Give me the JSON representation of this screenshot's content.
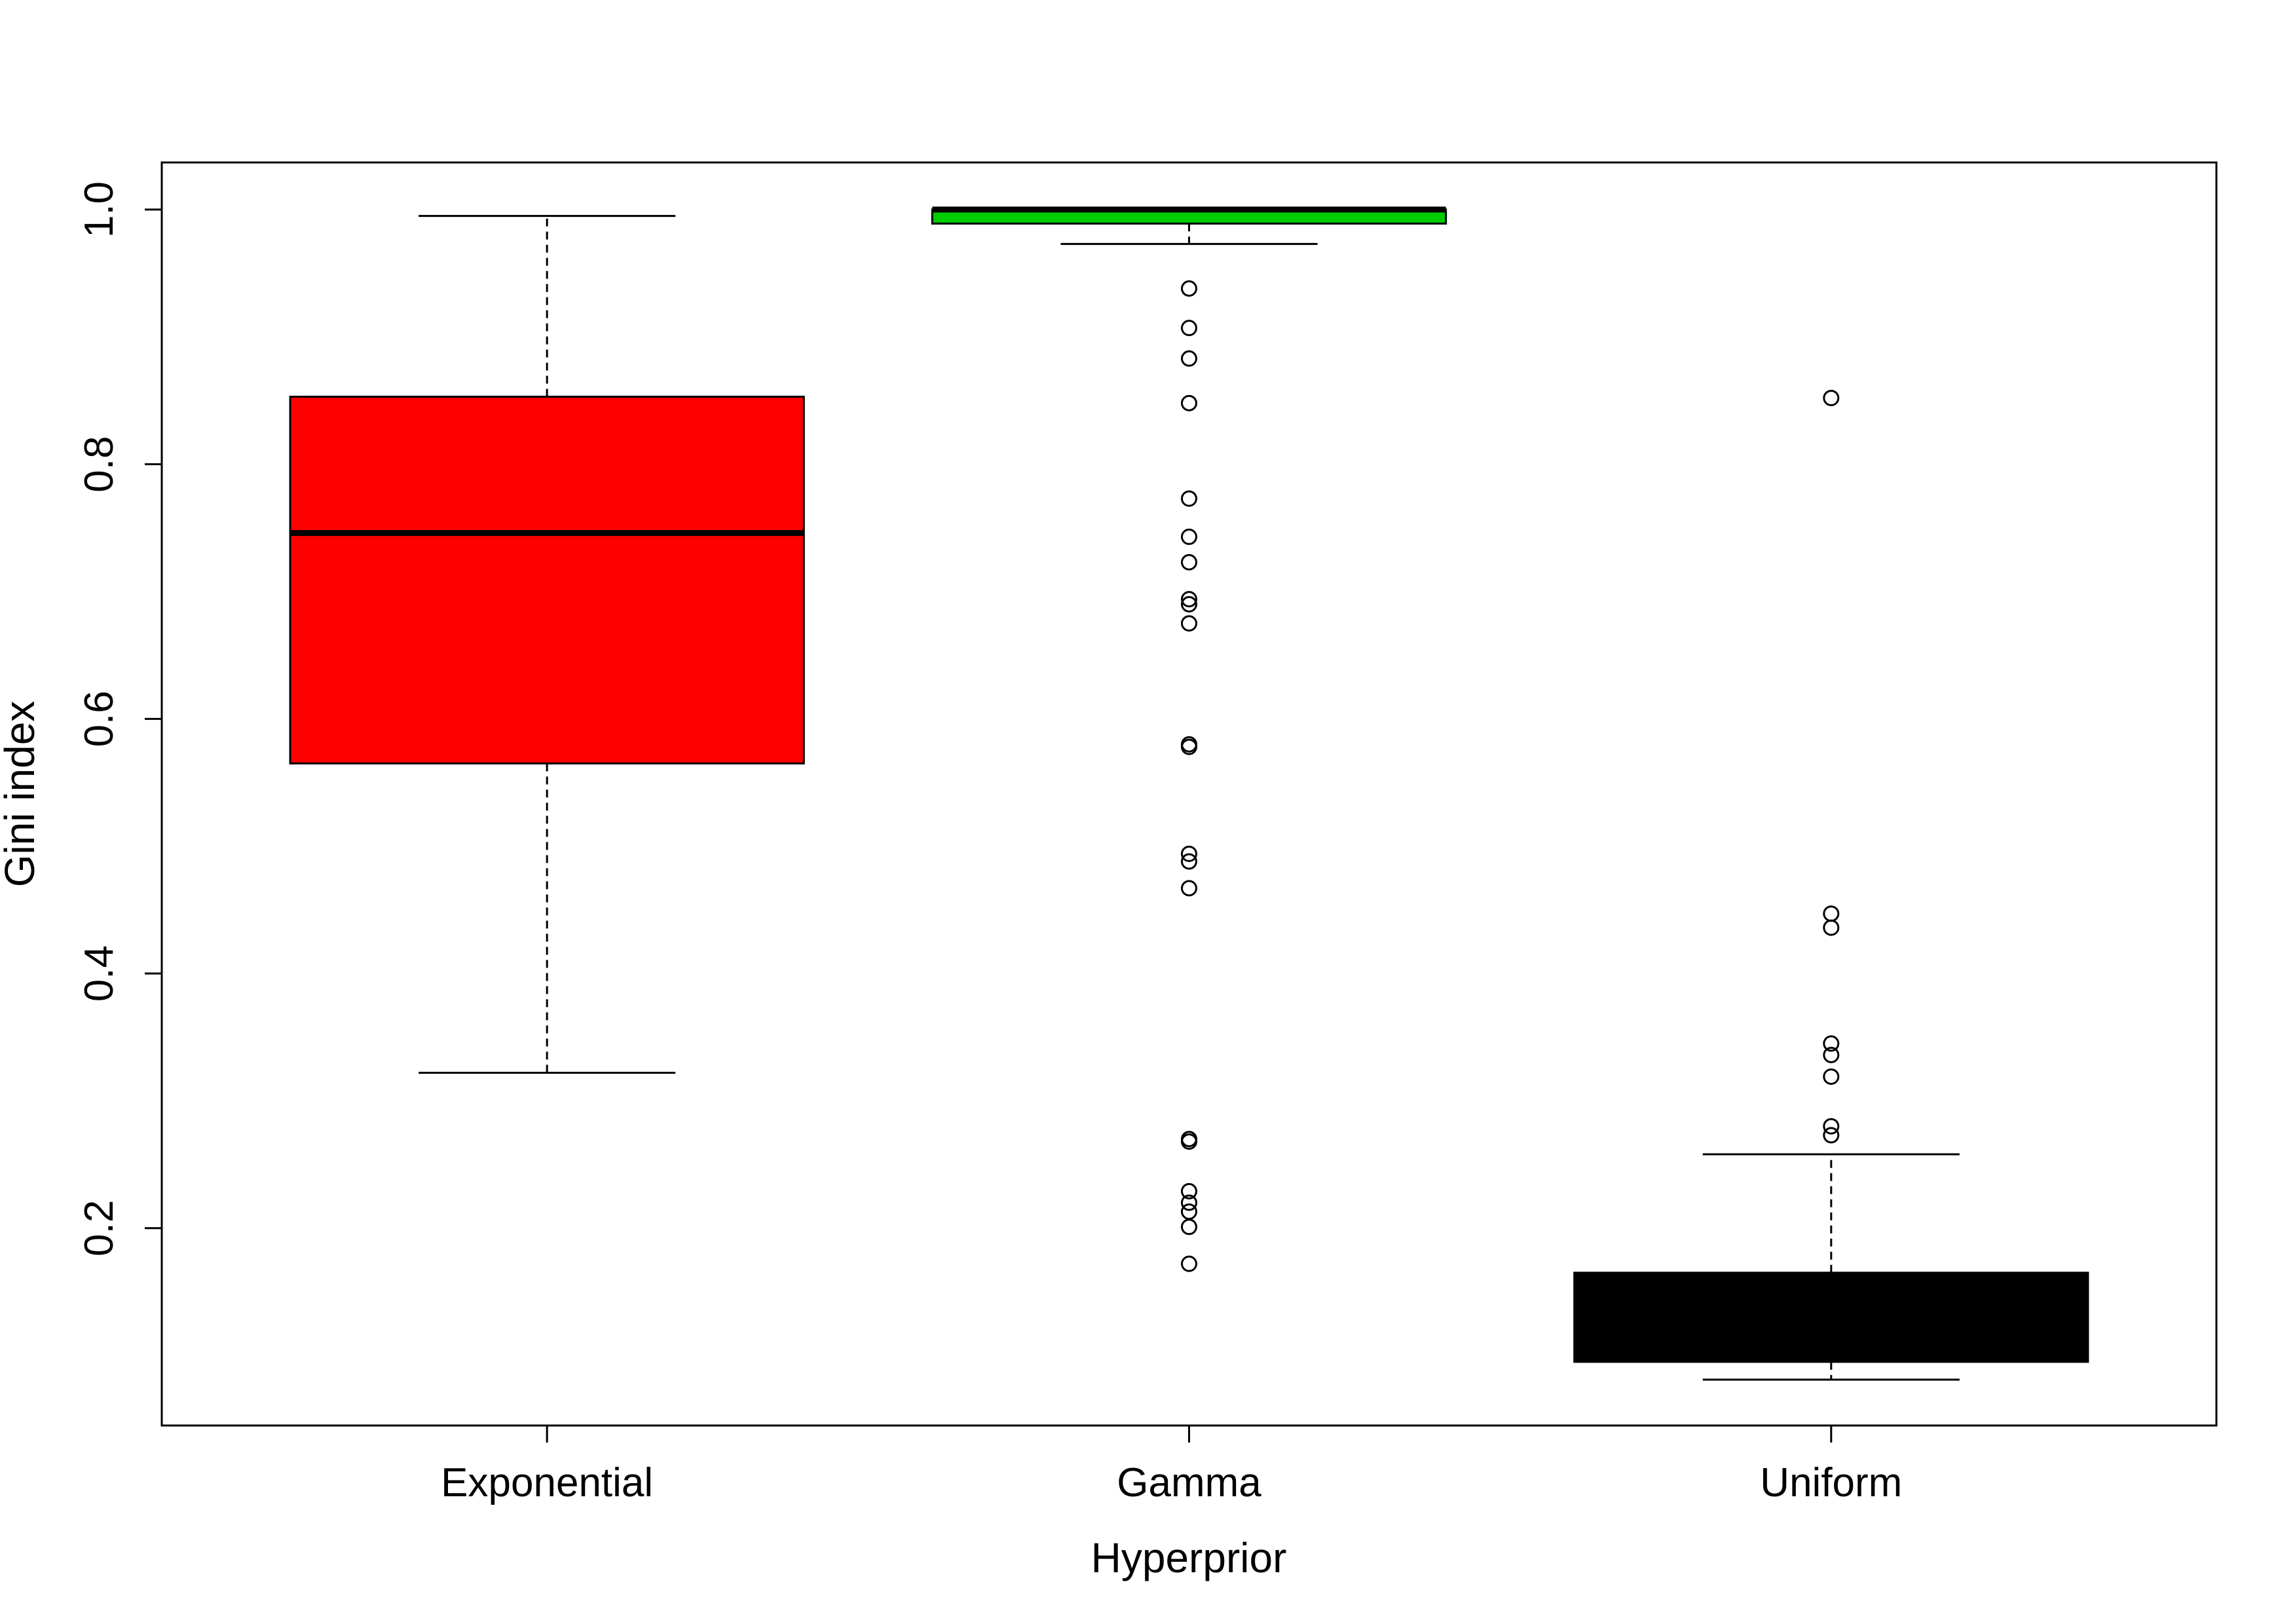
{
  "chart_data": {
    "type": "boxplot",
    "title": "",
    "xlabel": "Hyperprior",
    "ylabel": "Gini index",
    "ylim": [
      0.045,
      1.037
    ],
    "yticks": [
      "0.2",
      "0.4",
      "0.6",
      "0.8",
      "1.0"
    ],
    "categories": [
      "Exponential",
      "Gamma",
      "Uniform"
    ],
    "boxes": [
      {
        "name": "Exponential",
        "color": "#ff0000",
        "whisker_low": 0.322,
        "q1": 0.565,
        "median": 0.746,
        "q3": 0.853,
        "whisker_high": 0.995,
        "outliers": []
      },
      {
        "name": "Gamma",
        "color": "#00cd00",
        "whisker_low": 0.973,
        "q1": 0.989,
        "median": 1.0,
        "q3": 1.0,
        "whisker_high": 1.0,
        "outliers": [
          0.938,
          0.907,
          0.883,
          0.848,
          0.773,
          0.743,
          0.723,
          0.694,
          0.69,
          0.675,
          0.58,
          0.578,
          0.494,
          0.488,
          0.467,
          0.27,
          0.268,
          0.229,
          0.22,
          0.213,
          0.201,
          0.172
        ]
      },
      {
        "name": "Uniform",
        "color": "#000000",
        "whisker_low": 0.081,
        "q1": 0.095,
        "median": 0.13,
        "q3": 0.165,
        "whisker_high": 0.258,
        "outliers": [
          0.852,
          0.447,
          0.436,
          0.345,
          0.336,
          0.319,
          0.28,
          0.273
        ]
      }
    ]
  }
}
